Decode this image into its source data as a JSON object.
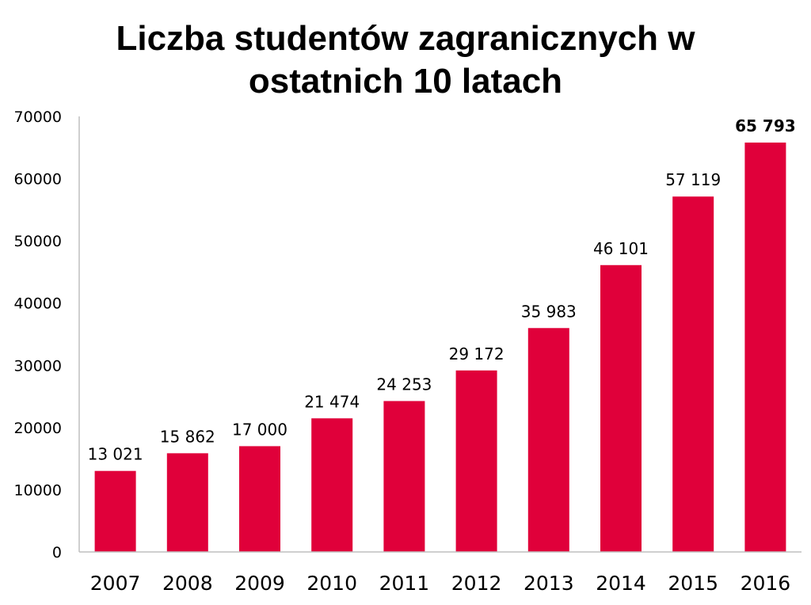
{
  "chart_data": {
    "type": "bar",
    "title_line1": "Liczba studentów zagranicznych w",
    "title_line2": "ostatnich 10 latach",
    "categories": [
      "2007",
      "2008",
      "2009",
      "2010",
      "2011",
      "2012",
      "2013",
      "2014",
      "2015",
      "2016"
    ],
    "values": [
      13021,
      15862,
      17000,
      21474,
      24253,
      29172,
      35983,
      46101,
      57119,
      65793
    ],
    "data_labels": [
      "13 021",
      "15 862",
      "17 000",
      "21 474",
      "24 253",
      "29 172",
      "35 983",
      "46 101",
      "57 119",
      "65 793"
    ],
    "emphasized_label_index": 9,
    "yticks": [
      "0",
      "10000",
      "20000",
      "30000",
      "40000",
      "50000",
      "60000",
      "70000"
    ],
    "ylim": [
      0,
      70000
    ],
    "grid": false,
    "legend": "none",
    "bar_color": "#e0003a",
    "axis_color": "#bfbfbf"
  }
}
